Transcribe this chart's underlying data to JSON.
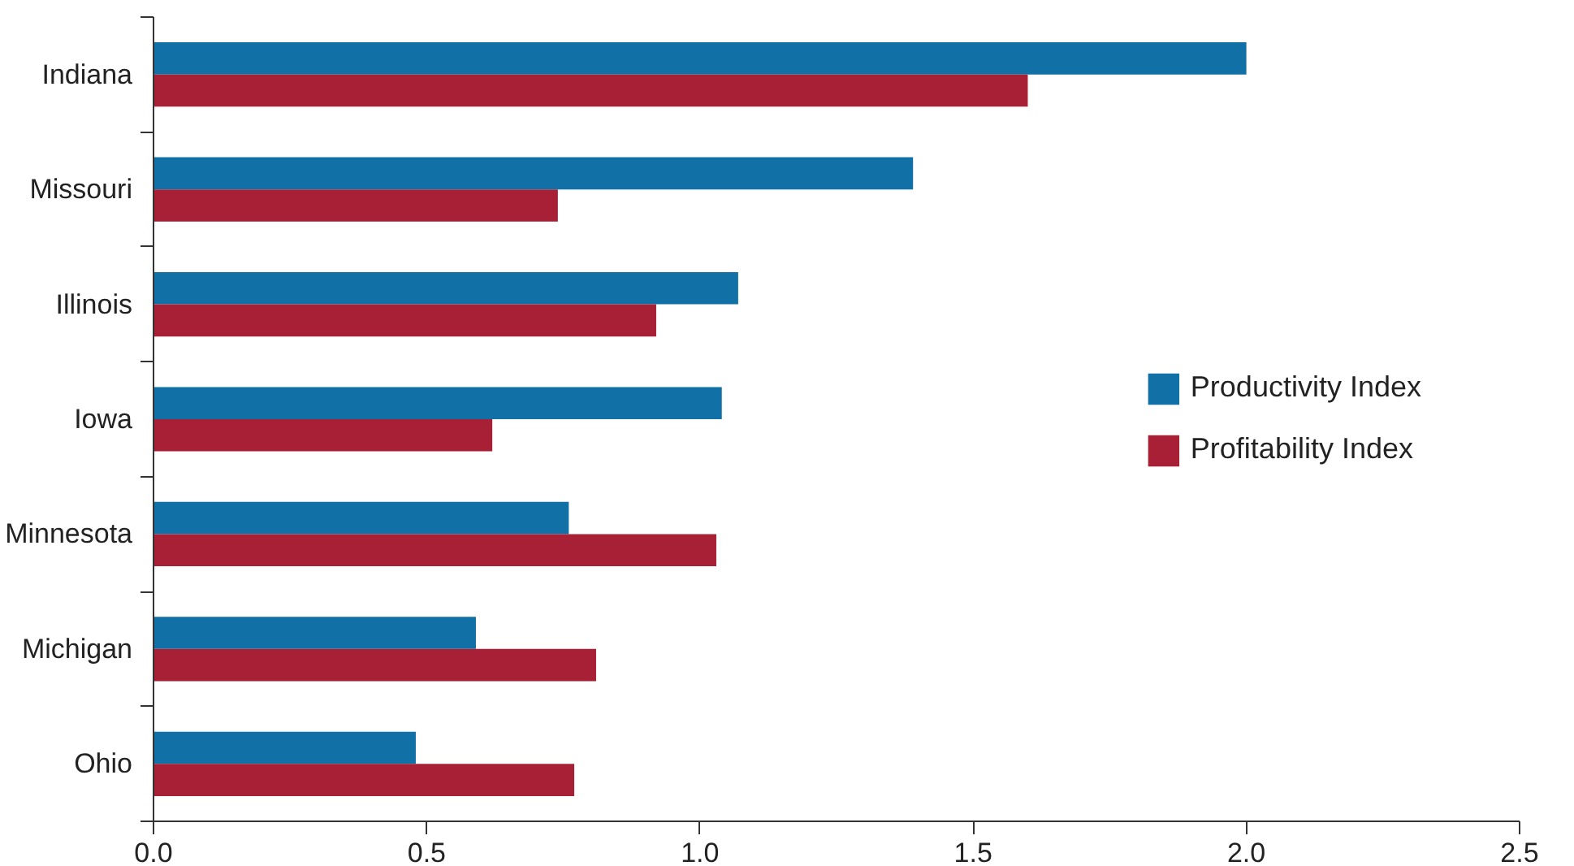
{
  "chart_data": {
    "type": "bar",
    "orientation": "horizontal",
    "categories": [
      "Indiana",
      "Missouri",
      "Illinois",
      "Iowa",
      "Minnesota",
      "Michigan",
      "Ohio"
    ],
    "series": [
      {
        "name": "Productivity Index",
        "color": "#1170a5",
        "values": [
          2.0,
          1.39,
          1.07,
          1.04,
          0.76,
          0.59,
          0.48
        ]
      },
      {
        "name": "Profitability Index",
        "color": "#a82035",
        "values": [
          1.6,
          0.74,
          0.92,
          0.62,
          1.03,
          0.81,
          0.77
        ]
      }
    ],
    "xlim": [
      0,
      2.5
    ],
    "xticks": [
      {
        "value": 0,
        "label": "0.0"
      },
      0.5,
      {
        "value": 1,
        "label": "1.0"
      },
      1.5,
      {
        "value": 2,
        "label": "2.0"
      },
      2.5
    ],
    "grid": false,
    "legend": "right"
  }
}
